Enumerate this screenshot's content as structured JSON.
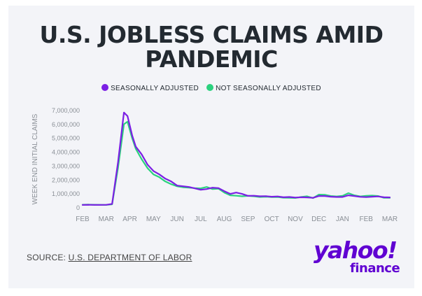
{
  "title_line1": "U.S. JOBLESS CLAIMS AMID",
  "title_line2": "PANDEMIC",
  "source": {
    "prefix": "SOURCE: ",
    "link_text": "U.S. DEPARTMENT OF LABOR"
  },
  "logo": {
    "yahoo": "yahoo!",
    "finance": "finance"
  },
  "colors": {
    "seasonally_adjusted": "#7b1fe4",
    "not_seasonally_adjusted": "#2bd17e",
    "background": "#f3f4f8",
    "brand": "#6001d2"
  },
  "chart_data": {
    "type": "line",
    "ylabel": "WEEK END INITIAL CLAIMS",
    "xlabel": "",
    "ylim": [
      0,
      7000000
    ],
    "yticks": [
      {
        "value": 0,
        "label": "0"
      },
      {
        "value": 1000000,
        "label": "1,000,000"
      },
      {
        "value": 2000000,
        "label": "2,000,000"
      },
      {
        "value": 3000000,
        "label": "3,000,000"
      },
      {
        "value": 4000000,
        "label": "4,000,000"
      },
      {
        "value": 5000000,
        "label": "5,000,000"
      },
      {
        "value": 6000000,
        "label": "6,000,000"
      },
      {
        "value": 7000000,
        "label": "7,000,000"
      }
    ],
    "xlim": [
      0,
      13
    ],
    "xticks": [
      {
        "value": 0,
        "label": "FEB"
      },
      {
        "value": 1,
        "label": "MAR"
      },
      {
        "value": 2,
        "label": "APR"
      },
      {
        "value": 3,
        "label": "MAY"
      },
      {
        "value": 4,
        "label": "JUN"
      },
      {
        "value": 5,
        "label": "JUL"
      },
      {
        "value": 6,
        "label": "AUG"
      },
      {
        "value": 7,
        "label": "SEP"
      },
      {
        "value": 8,
        "label": "OCT"
      },
      {
        "value": 9,
        "label": "NOV"
      },
      {
        "value": 10,
        "label": "DEC"
      },
      {
        "value": 11,
        "label": "JAN"
      },
      {
        "value": 12,
        "label": "FEB"
      },
      {
        "value": 13,
        "label": "MAR"
      }
    ],
    "legend_position": "top-center",
    "grid": false,
    "series": [
      {
        "name": "SEASONALLY ADJUSTED",
        "color": "#7b1fe4",
        "x": [
          0,
          0.25,
          0.5,
          0.75,
          1.0,
          1.25,
          1.5,
          1.75,
          1.9,
          2.1,
          2.25,
          2.5,
          2.75,
          3.0,
          3.25,
          3.5,
          3.75,
          4.0,
          4.25,
          4.5,
          4.75,
          5.0,
          5.25,
          5.5,
          5.75,
          6.0,
          6.25,
          6.5,
          6.75,
          7.0,
          7.25,
          7.5,
          7.75,
          8.0,
          8.25,
          8.5,
          8.75,
          9.0,
          9.25,
          9.5,
          9.75,
          10.0,
          10.25,
          10.5,
          10.75,
          11.0,
          11.25,
          11.5,
          11.75,
          12.0,
          12.25,
          12.5,
          12.75,
          13.0
        ],
        "values": [
          210000,
          215000,
          210000,
          210000,
          215000,
          280000,
          3300000,
          6860000,
          6600000,
          5200000,
          4400000,
          3850000,
          3100000,
          2650000,
          2400000,
          2100000,
          1900000,
          1600000,
          1550000,
          1500000,
          1400000,
          1300000,
          1350000,
          1450000,
          1420000,
          1200000,
          1000000,
          1100000,
          1000000,
          860000,
          870000,
          830000,
          840000,
          800000,
          820000,
          760000,
          780000,
          740000,
          760000,
          750000,
          720000,
          850000,
          850000,
          800000,
          780000,
          780000,
          900000,
          850000,
          790000,
          770000,
          800000,
          820000,
          760000,
          750000
        ]
      },
      {
        "name": "NOT SEASONALLY ADJUSTED",
        "color": "#2bd17e",
        "x": [
          0,
          0.25,
          0.5,
          0.75,
          1.0,
          1.25,
          1.5,
          1.75,
          1.9,
          2.1,
          2.25,
          2.5,
          2.75,
          3.0,
          3.25,
          3.5,
          3.75,
          4.0,
          4.25,
          4.5,
          4.75,
          5.0,
          5.25,
          5.5,
          5.75,
          6.0,
          6.25,
          6.5,
          6.75,
          7.0,
          7.25,
          7.5,
          7.75,
          8.0,
          8.25,
          8.5,
          8.75,
          9.0,
          9.25,
          9.5,
          9.75,
          10.0,
          10.25,
          10.5,
          10.75,
          11.0,
          11.25,
          11.5,
          11.75,
          12.0,
          12.25,
          12.5,
          12.75,
          13.0
        ],
        "values": [
          220000,
          230000,
          220000,
          215000,
          210000,
          250000,
          2900000,
          6020000,
          6200000,
          5000000,
          4250000,
          3500000,
          2850000,
          2400000,
          2200000,
          1900000,
          1700000,
          1550000,
          1480000,
          1450000,
          1420000,
          1400000,
          1500000,
          1350000,
          1380000,
          1100000,
          900000,
          870000,
          830000,
          860000,
          830000,
          780000,
          800000,
          770000,
          780000,
          730000,
          720000,
          710000,
          780000,
          830000,
          700000,
          950000,
          940000,
          850000,
          820000,
          860000,
          1060000,
          900000,
          820000,
          860000,
          880000,
          850000,
          720000,
          720000
        ]
      }
    ]
  }
}
